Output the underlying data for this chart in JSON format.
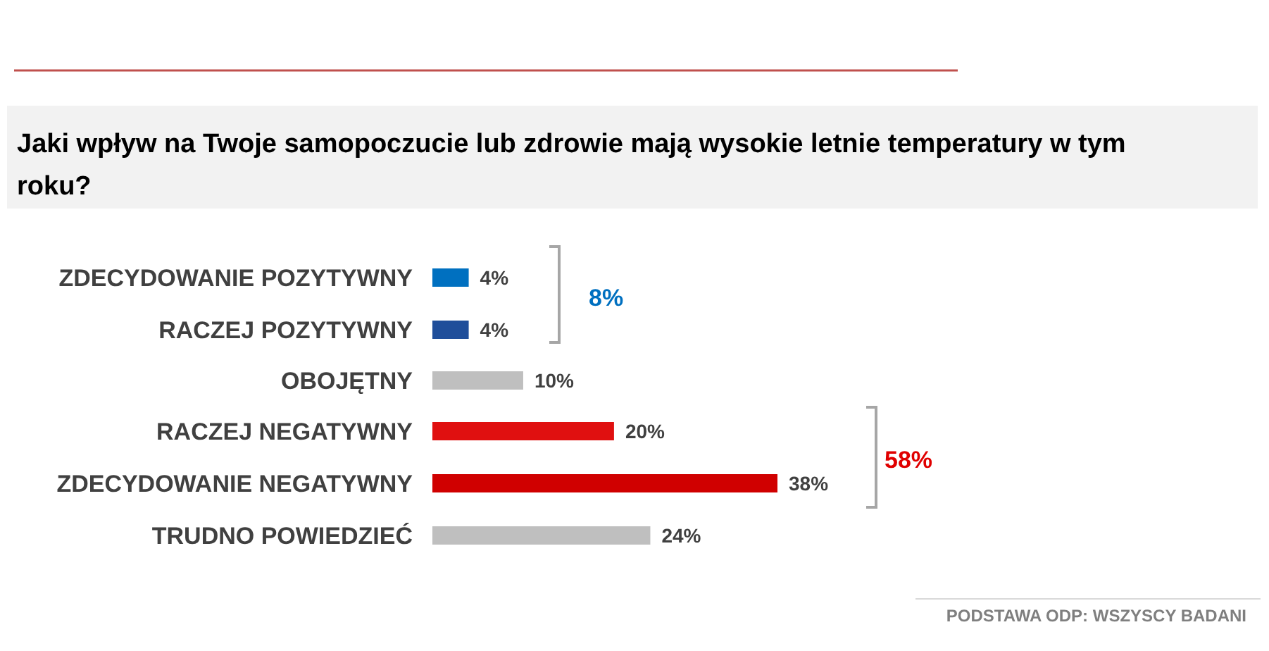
{
  "chart_data": {
    "type": "bar",
    "orientation": "horizontal",
    "title": "Jaki wpływ na Twoje samopoczucie lub zdrowie mają wysokie letnie temperatury w tym roku?",
    "categories": [
      "ZDECYDOWANIE POZYTYWNY",
      "RACZEJ POZYTYWNY",
      "OBOJĘTNY",
      "RACZEJ NEGATYWNY",
      "ZDECYDOWANIE NEGATYWNY",
      "TRUDNO POWIEDZIEĆ"
    ],
    "values": [
      4,
      4,
      10,
      20,
      38,
      24
    ],
    "colors": [
      "#0070c0",
      "#1f4e9a",
      "#bfbfbf",
      "#e01010",
      "#d00000",
      "#bfbfbf"
    ],
    "value_labels": [
      "4%",
      "4%",
      "10%",
      "20%",
      "38%",
      "24%"
    ],
    "annotations": [
      "8%",
      "58%",
      "PODSTAWA ODP: WSZYSCY BADANI"
    ]
  }
}
